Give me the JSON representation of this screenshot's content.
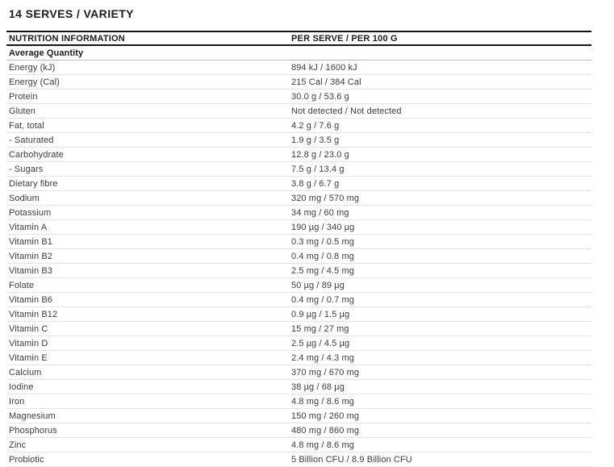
{
  "title": "14 SERVES / VARIETY",
  "colors": {
    "rule_strong": "#141414",
    "rule_section": "#b9b9b9",
    "rule_row": "#e4e4e4",
    "text_primary": "#1b1b1b",
    "text_secondary": "#3d3d3d"
  },
  "table": {
    "columns": [
      "NUTRITION INFORMATION",
      "PER SERVE / PER 100 G"
    ],
    "section_header": "Average Quantity",
    "rows": [
      {
        "label": "Energy (kJ)",
        "value": "894 kJ / 1600 kJ"
      },
      {
        "label": "Energy (Cal)",
        "value": "215 Cal / 384 Cal"
      },
      {
        "label": "Protein",
        "value": "30.0 g / 53.6 g"
      },
      {
        "label": "Gluten",
        "value": "Not detected / Not detected"
      },
      {
        "label": "Fat, total",
        "value": "4.2 g / 7.6 g"
      },
      {
        "label": "- Saturated",
        "value": "1.9 g / 3.5 g"
      },
      {
        "label": "Carbohydrate",
        "value": "12.8 g / 23.0 g"
      },
      {
        "label": "- Sugars",
        "value": "7.5 g / 13.4 g"
      },
      {
        "label": "Dietary fibre",
        "value": "3.8 g / 6.7 g"
      },
      {
        "label": "Sodium",
        "value": "320 mg / 570 mg"
      },
      {
        "label": "Potassium",
        "value": "34 mg / 60 mg"
      },
      {
        "label": "Vitamin A",
        "value": "190 µg / 340 µg"
      },
      {
        "label": "Vitamin B1",
        "value": "0.3 mg / 0.5 mg"
      },
      {
        "label": "Vitamin B2",
        "value": "0.4 mg / 0.8 mg"
      },
      {
        "label": "Vitamin B3",
        "value": "2.5 mg / 4.5 mg"
      },
      {
        "label": "Folate",
        "value": "50 µg / 89 µg"
      },
      {
        "label": "Vitamin B6",
        "value": "0.4 mg / 0.7 mg"
      },
      {
        "label": "Vitamin B12",
        "value": "0.9 µg / 1.5 µg"
      },
      {
        "label": "Vitamin C",
        "value": "15 mg / 27 mg"
      },
      {
        "label": "Vitamin D",
        "value": "2.5 µg / 4.5 µg"
      },
      {
        "label": "Vitamin E",
        "value": "2.4 mg / 4.3 mg"
      },
      {
        "label": "Calcium",
        "value": "370 mg / 670 mg"
      },
      {
        "label": "Iodine",
        "value": "38 µg / 68 µg"
      },
      {
        "label": "Iron",
        "value": "4.8 mg / 8.6 mg"
      },
      {
        "label": "Magnesium",
        "value": "150 mg / 260 mg"
      },
      {
        "label": "Phosphorus",
        "value": "480 mg / 860 mg"
      },
      {
        "label": "Zinc",
        "value": "4.8 mg / 8.6 mg"
      },
      {
        "label": "Probiotic",
        "value": "5 Billion CFU / 8.9 Billion CFU"
      }
    ]
  }
}
